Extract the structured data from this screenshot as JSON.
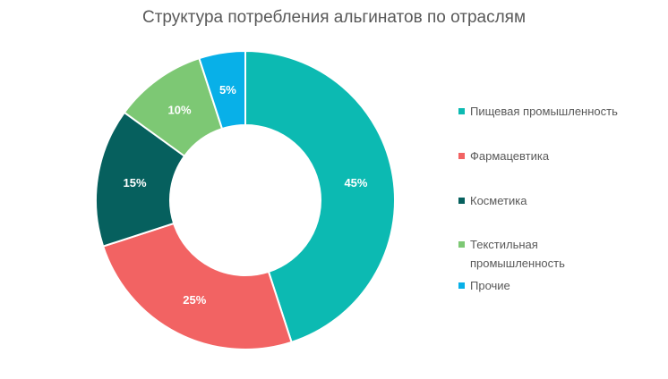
{
  "chart_data": {
    "type": "pie",
    "title": "Структура потребления альгинатов по отраслям",
    "donut": true,
    "legend_position": "right",
    "categories": [
      "Пищевая промышленность",
      "Фармацевтика",
      "Косметика",
      "Текстильная промышленность",
      "Прочие"
    ],
    "legend_lines": [
      [
        "Пищевая промышленность"
      ],
      [
        "Фармацевтика"
      ],
      [
        "Косметика"
      ],
      [
        "Текстильная",
        "промышленность"
      ],
      [
        "Прочие"
      ]
    ],
    "values": [
      45,
      25,
      15,
      10,
      5
    ],
    "labels": [
      "45%",
      "25%",
      "15%",
      "10%",
      "5%"
    ],
    "colors": [
      "#0CBAB2",
      "#F26363",
      "#06605E",
      "#7DC874",
      "#08B0E8"
    ],
    "start_angle_deg": 0,
    "direction": "clockwise"
  }
}
